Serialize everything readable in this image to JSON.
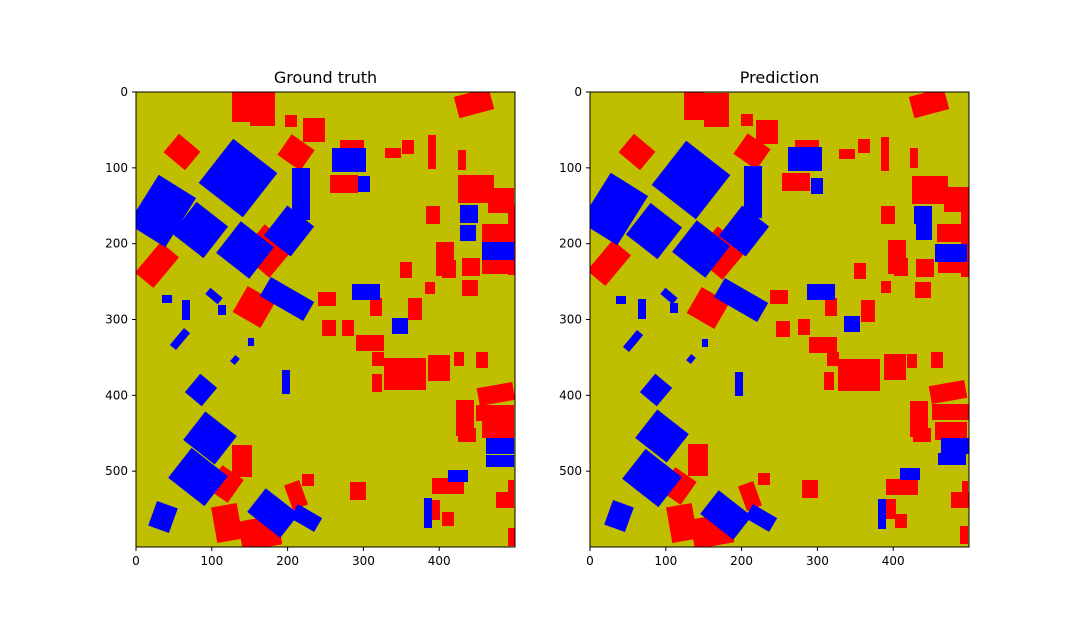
{
  "chart_data": [
    {
      "type": "heatmap",
      "title": "Ground truth",
      "xlabel": "",
      "ylabel": "",
      "xlim": [
        0,
        500
      ],
      "ylim": [
        600,
        0
      ],
      "xticks": [
        0,
        100,
        200,
        300,
        400
      ],
      "yticks": [
        0,
        100,
        200,
        300,
        400,
        500
      ],
      "grid": false,
      "colors": {
        "background": "#bfbf00",
        "class_a": "#ff0000",
        "class_b": "#0000ff"
      }
    },
    {
      "type": "heatmap",
      "title": "Prediction",
      "xlabel": "",
      "ylabel": "",
      "xlim": [
        0,
        500
      ],
      "ylim": [
        600,
        0
      ],
      "xticks": [
        0,
        100,
        200,
        300,
        400
      ],
      "yticks": [
        0,
        100,
        200,
        300,
        400,
        500
      ],
      "grid": false,
      "colors": {
        "background": "#bfbf00",
        "class_a": "#ff0000",
        "class_b": "#0000ff"
      }
    }
  ]
}
